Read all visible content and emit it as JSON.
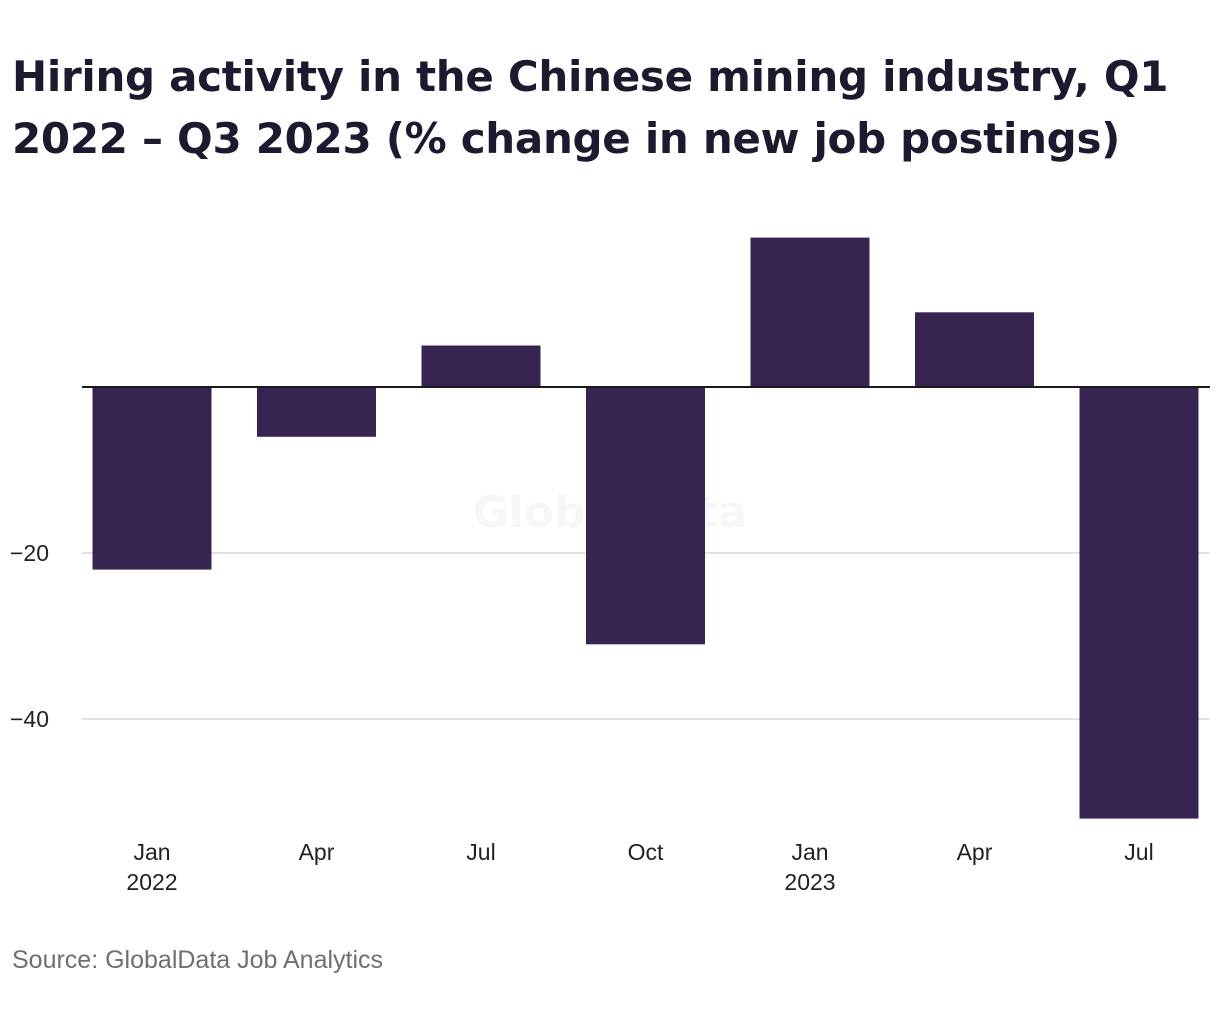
{
  "title": "Hiring activity in the Chinese mining industry, Q1 2022 – Q3 2023 (% change in new job postings)",
  "source": "Source: GlobalData Job Analytics",
  "watermark": "GlobalData",
  "colors": {
    "bar": "#372451",
    "grid": "#d9d9d9",
    "zero_line": "#1a1a1a"
  },
  "chart_data": {
    "type": "bar",
    "categories": [
      "Jan\n2022",
      "Apr",
      "Jul",
      "Oct",
      "Jan\n2023",
      "Apr",
      "Jul"
    ],
    "values": [
      -22,
      -6,
      5,
      -31,
      18,
      9,
      -52
    ],
    "ylim": [
      -53,
      18
    ],
    "yticks": [
      -20,
      -40
    ],
    "ytick_labels": [
      "−20",
      "−40"
    ],
    "grid": true,
    "xlabel": "",
    "ylabel": ""
  }
}
